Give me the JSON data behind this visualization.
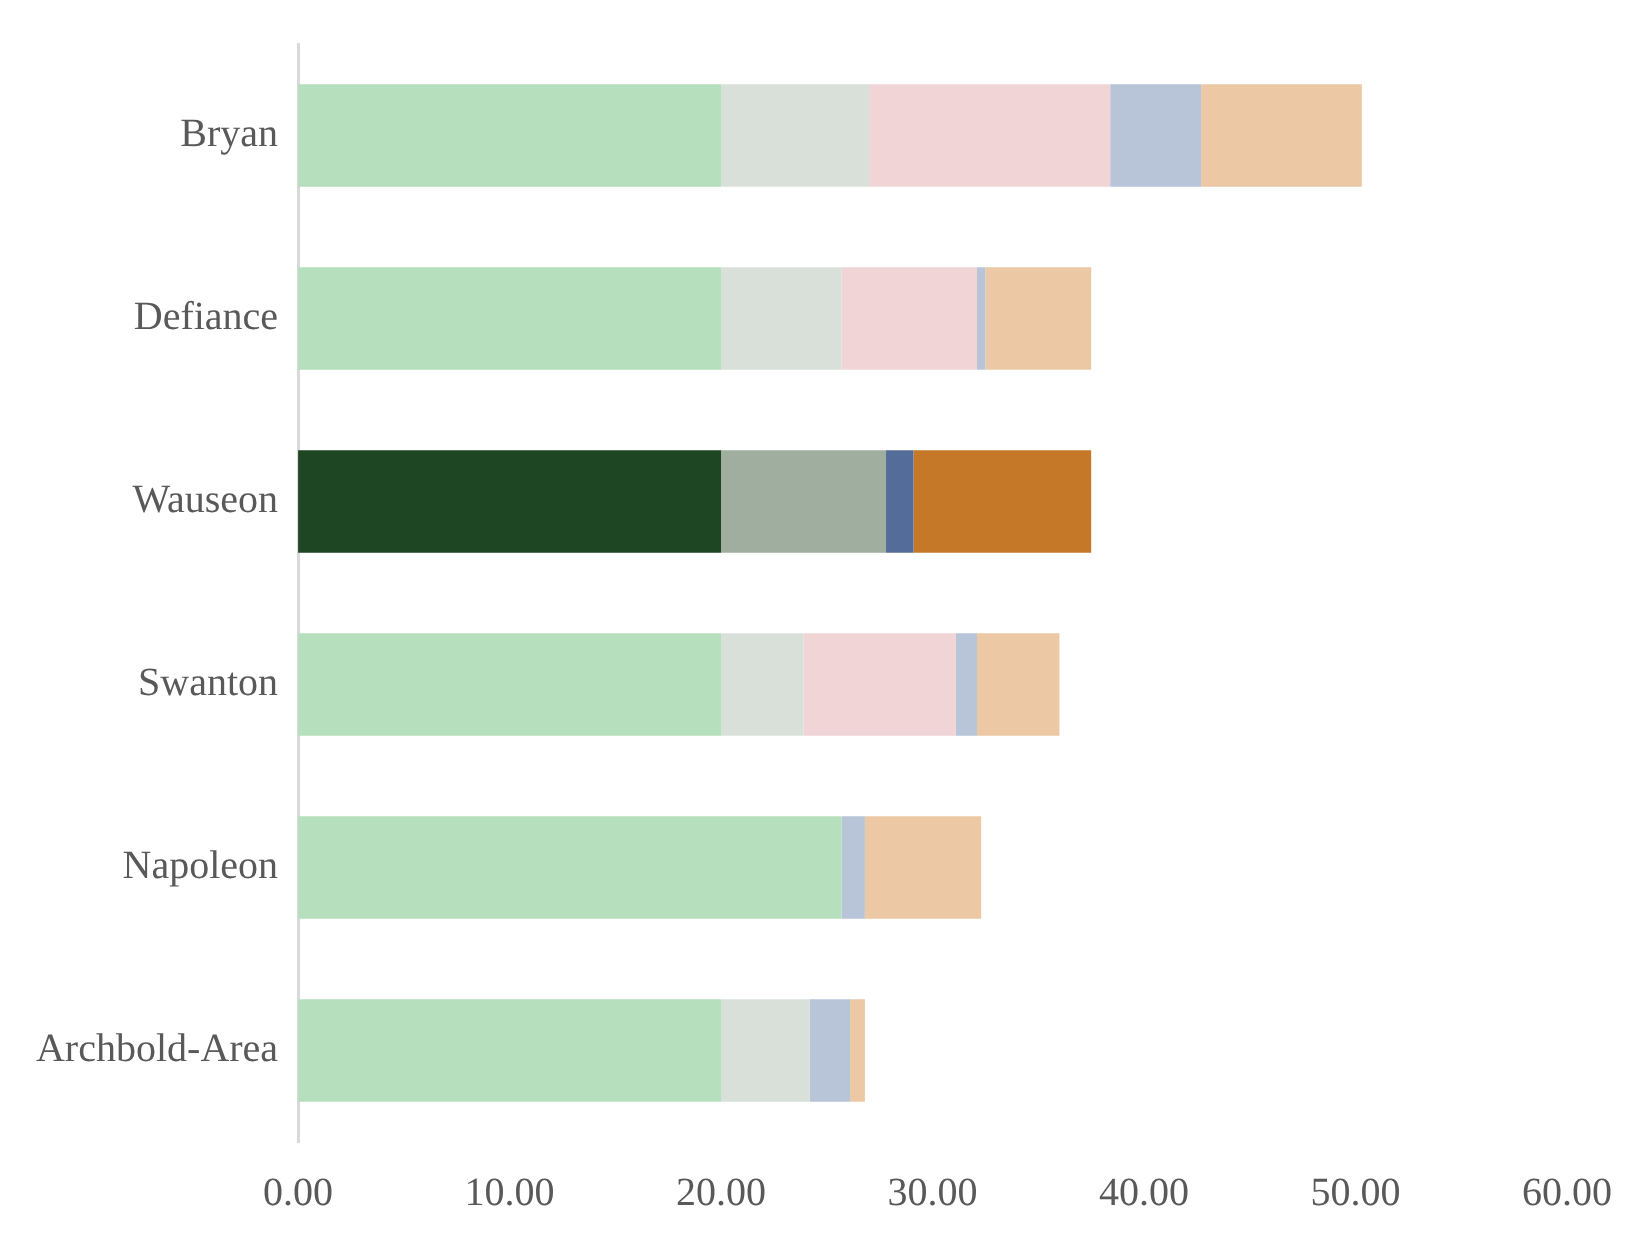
{
  "chart_data": {
    "type": "bar",
    "orientation": "horizontal",
    "stacked": true,
    "categories": [
      "Bryan",
      "Defiance",
      "Wauseon",
      "Swanton",
      "Napoleon",
      "Archbold-Area"
    ],
    "series": [
      {
        "colors": [
          "#b6dfbd",
          "#b6dfbd",
          "#1f4623",
          "#b6dfbd",
          "#b6dfbd",
          "#b6dfbd"
        ],
        "values": [
          20,
          20,
          20,
          20,
          25.7,
          20
        ]
      },
      {
        "colors": [
          "#d9e0da",
          "#d9e0da",
          "#a0ae9f",
          "#d9e0da",
          "#d9e0da",
          "#d9e0da"
        ],
        "values": [
          7.0,
          5.7,
          7.8,
          3.9,
          null,
          4.2
        ]
      },
      {
        "colors": [
          "#f0d4d6",
          "#f0d4d6",
          "#f0d4d6",
          "#f0d4d6",
          "#f0d4d6",
          "#f0d4d6"
        ],
        "values": [
          11.4,
          6.4,
          null,
          7.2,
          null,
          null
        ]
      },
      {
        "colors": [
          "#b8c4d7",
          "#b8c4d7",
          "#546c9a",
          "#b8c4d7",
          "#b8c4d7",
          "#b8c4d7"
        ],
        "values": [
          4.3,
          0.4,
          1.3,
          1.0,
          1.1,
          1.9
        ]
      },
      {
        "colors": [
          "#ecc9a4",
          "#ecc9a4",
          "#c57828",
          "#ecc9a4",
          "#ecc9a4",
          "#ecc9a4"
        ],
        "values": [
          7.6,
          5.0,
          8.4,
          3.9,
          5.5,
          0.7
        ]
      }
    ],
    "xlim": [
      0,
      60
    ],
    "xticks": [
      {
        "value": 0,
        "label": "0.00"
      },
      {
        "value": 10,
        "label": "10.00"
      },
      {
        "value": 20,
        "label": "20.00"
      },
      {
        "value": 30,
        "label": "30.00"
      },
      {
        "value": 40,
        "label": "40.00"
      },
      {
        "value": 50,
        "label": "50.00"
      },
      {
        "value": 60,
        "label": "60.00"
      }
    ],
    "grid": false,
    "legend": false
  }
}
